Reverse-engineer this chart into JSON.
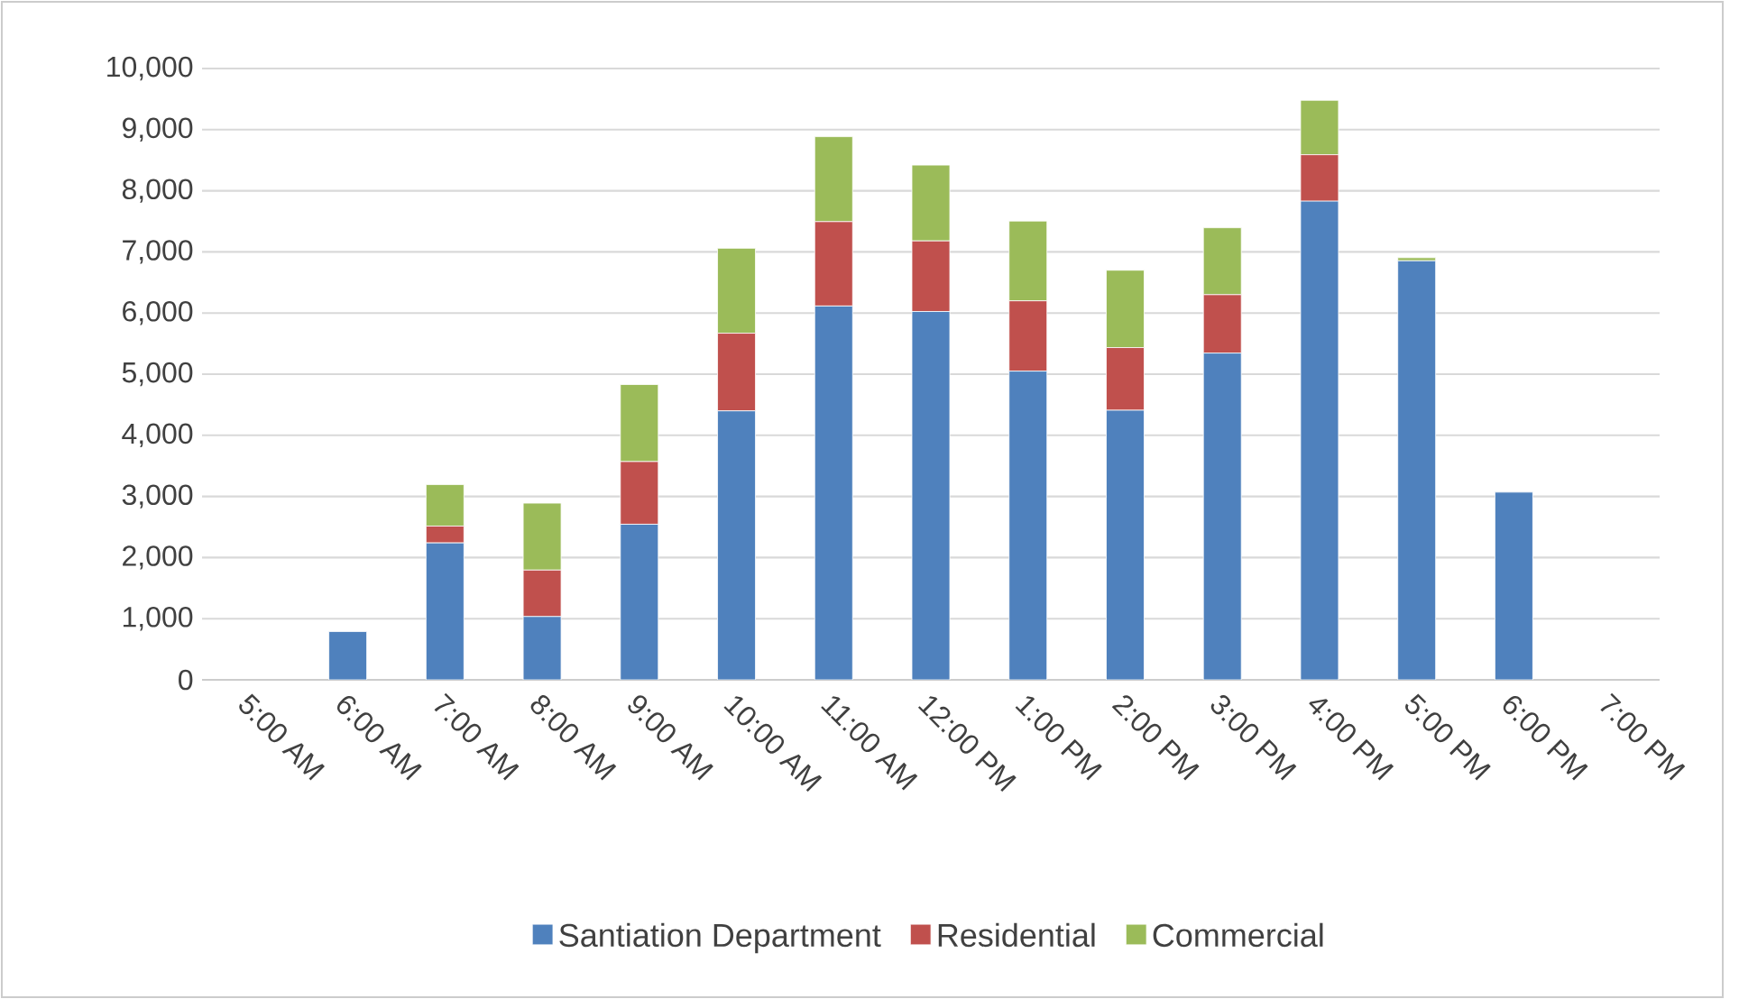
{
  "chart_data": {
    "type": "bar",
    "stacked": true,
    "categories": [
      "5:00 AM",
      "6:00 AM",
      "7:00 AM",
      "8:00 AM",
      "9:00 AM",
      "10:00 AM",
      "11:00 AM",
      "12:00 PM",
      "1:00 PM",
      "2:00 PM",
      "3:00 PM",
      "4:00 PM",
      "5:00 PM",
      "6:00 PM",
      "7:00 PM"
    ],
    "series": [
      {
        "name": "Santiation Department",
        "color": "#4f81bd",
        "values": [
          0,
          790,
          2240,
          1035,
          2545,
          4400,
          6115,
          6025,
          5050,
          4410,
          5345,
          7830,
          6855,
          3070,
          0
        ]
      },
      {
        "name": "Residential",
        "color": "#c0504d",
        "values": [
          0,
          0,
          275,
          760,
          1025,
          1270,
          1380,
          1155,
          1150,
          1025,
          955,
          760,
          0,
          0,
          0
        ]
      },
      {
        "name": "Commercial",
        "color": "#9bbb59",
        "values": [
          0,
          0,
          680,
          1095,
          1260,
          1390,
          1390,
          1240,
          1305,
          1265,
          1095,
          890,
          50,
          0,
          0
        ]
      }
    ],
    "ylim": [
      0,
      10000
    ],
    "yticks": [
      {
        "value": 0,
        "label": "0"
      },
      {
        "value": 1000,
        "label": "1,000"
      },
      {
        "value": 2000,
        "label": "2,000"
      },
      {
        "value": 3000,
        "label": "3,000"
      },
      {
        "value": 4000,
        "label": "4,000"
      },
      {
        "value": 5000,
        "label": "5,000"
      },
      {
        "value": 6000,
        "label": "6,000"
      },
      {
        "value": 7000,
        "label": "7,000"
      },
      {
        "value": 8000,
        "label": "8,000"
      },
      {
        "value": 9000,
        "label": "9,000"
      },
      {
        "value": 10000,
        "label": "10,000"
      }
    ],
    "grid": "y",
    "legend": "bottom"
  }
}
